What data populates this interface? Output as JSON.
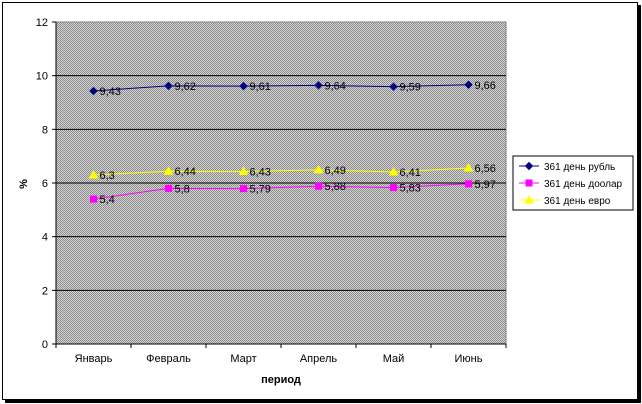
{
  "chart_data": {
    "type": "line",
    "xlabel": "период",
    "ylabel": "%",
    "ylim": [
      0,
      12
    ],
    "yticks": [
      "0",
      "2",
      "4",
      "6",
      "8",
      "10",
      "12"
    ],
    "categories": [
      "Январь",
      "Февраль",
      "Март",
      "Апрель",
      "Май",
      "Июнь"
    ],
    "grid": true,
    "legend_position": "right",
    "plot_background": "#c0c0c0",
    "series": [
      {
        "name": "361 день рубль",
        "color": "#000080",
        "marker": "diamond",
        "values": [
          9.43,
          9.62,
          9.61,
          9.64,
          9.59,
          9.66
        ],
        "labels": [
          "9,43",
          "9,62",
          "9,61",
          "9,64",
          "9,59",
          "9,66"
        ]
      },
      {
        "name": "361 день доолар",
        "color": "#ff00ff",
        "marker": "square",
        "values": [
          5.4,
          5.8,
          5.79,
          5.88,
          5.83,
          5.97
        ],
        "labels": [
          "5,4",
          "5,8",
          "5,79",
          "5,88",
          "5,83",
          "5,97"
        ]
      },
      {
        "name": "361 день евро",
        "color": "#ffff00",
        "marker": "triangle",
        "values": [
          6.3,
          6.44,
          6.43,
          6.49,
          6.41,
          6.56
        ],
        "labels": [
          "6,3",
          "6,44",
          "6,43",
          "6,49",
          "6,41",
          "6,56"
        ]
      }
    ]
  }
}
